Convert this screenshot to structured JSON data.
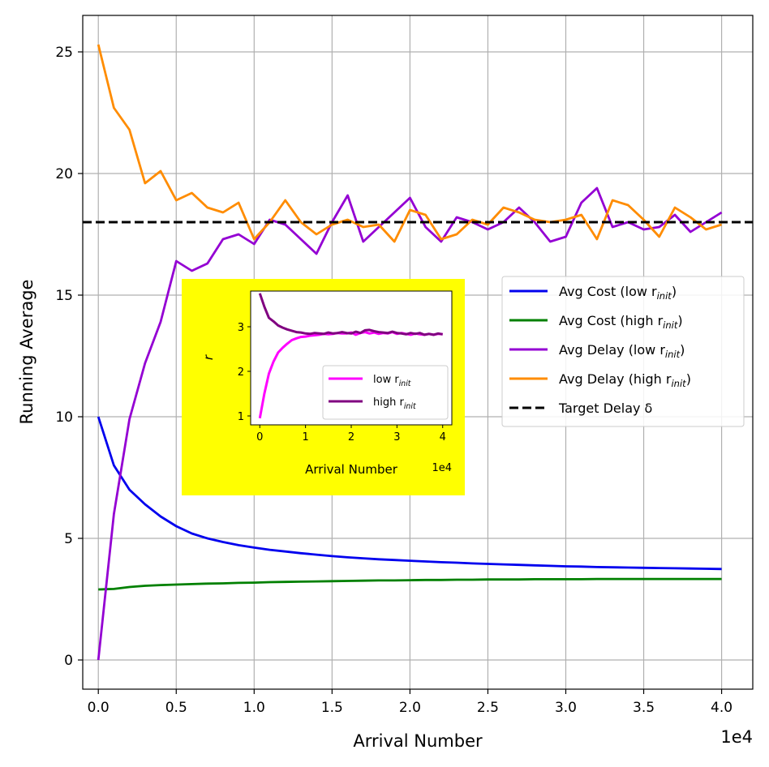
{
  "chart_data": {
    "type": "line",
    "xlabel": "Arrival Number",
    "ylabel": "Running Average",
    "x_offset_label": "1e4",
    "xlim": [
      -0.1,
      4.2
    ],
    "ylim": [
      -1.2,
      26.5
    ],
    "grid": true,
    "x": [
      0.0,
      0.1,
      0.2,
      0.3,
      0.4,
      0.5,
      0.6,
      0.7,
      0.8,
      0.9,
      1.0,
      1.1,
      1.2,
      1.3,
      1.4,
      1.5,
      1.6,
      1.7,
      1.8,
      1.9,
      2.0,
      2.1,
      2.2,
      2.3,
      2.4,
      2.5,
      2.6,
      2.7,
      2.8,
      2.9,
      3.0,
      3.1,
      3.2,
      3.3,
      3.4,
      3.5,
      3.6,
      3.7,
      3.8,
      3.9,
      4.0
    ],
    "x_ticks": [
      {
        "v": 0.0,
        "label": "0.0"
      },
      {
        "v": 0.5,
        "label": "0.5"
      },
      {
        "v": 1.0,
        "label": "1.0"
      },
      {
        "v": 1.5,
        "label": "1.5"
      },
      {
        "v": 2.0,
        "label": "2.0"
      },
      {
        "v": 2.5,
        "label": "2.5"
      },
      {
        "v": 3.0,
        "label": "3.0"
      },
      {
        "v": 3.5,
        "label": "3.5"
      },
      {
        "v": 4.0,
        "label": "4.0"
      }
    ],
    "y_ticks": [
      {
        "v": 0,
        "label": "0"
      },
      {
        "v": 5,
        "label": "5"
      },
      {
        "v": 10,
        "label": "10"
      },
      {
        "v": 15,
        "label": "15"
      },
      {
        "v": 20,
        "label": "20"
      },
      {
        "v": 25,
        "label": "25"
      }
    ],
    "series": [
      {
        "name": "Avg Cost (low r",
        "subscript": "init",
        "suffix": ")",
        "color": "#0000ee",
        "style": "solid",
        "values": [
          10.0,
          8.0,
          7.0,
          6.4,
          5.9,
          5.5,
          5.2,
          5.0,
          4.85,
          4.72,
          4.62,
          4.53,
          4.46,
          4.39,
          4.33,
          4.27,
          4.22,
          4.18,
          4.14,
          4.11,
          4.08,
          4.05,
          4.02,
          4.0,
          3.97,
          3.95,
          3.93,
          3.91,
          3.89,
          3.87,
          3.85,
          3.84,
          3.82,
          3.81,
          3.8,
          3.79,
          3.78,
          3.77,
          3.76,
          3.75,
          3.74
        ]
      },
      {
        "name": "Avg Cost (high r",
        "subscript": "init",
        "suffix": ")",
        "color": "#008000",
        "style": "solid",
        "values": [
          2.9,
          2.92,
          3.0,
          3.05,
          3.08,
          3.1,
          3.12,
          3.14,
          3.15,
          3.17,
          3.18,
          3.2,
          3.21,
          3.22,
          3.23,
          3.24,
          3.25,
          3.26,
          3.27,
          3.27,
          3.28,
          3.29,
          3.29,
          3.3,
          3.3,
          3.31,
          3.31,
          3.31,
          3.32,
          3.32,
          3.32,
          3.32,
          3.33,
          3.33,
          3.33,
          3.33,
          3.33,
          3.33,
          3.33,
          3.33,
          3.33
        ]
      },
      {
        "name": "Avg Delay (low r",
        "subscript": "init",
        "suffix": ")",
        "color": "#9400d3",
        "style": "solid",
        "values": [
          0.0,
          6.0,
          9.9,
          12.2,
          13.9,
          16.4,
          16.0,
          16.3,
          17.3,
          17.5,
          17.1,
          18.1,
          17.9,
          17.3,
          16.7,
          18.0,
          19.1,
          17.2,
          17.8,
          18.4,
          19.0,
          17.8,
          17.2,
          18.2,
          18.0,
          17.7,
          18.0,
          18.6,
          18.0,
          17.2,
          17.4,
          18.8,
          19.4,
          17.8,
          18.0,
          17.7,
          17.8,
          18.3,
          17.6,
          18.0,
          18.4
        ]
      },
      {
        "name": "Avg Delay (high r",
        "subscript": "init",
        "suffix": ")",
        "color": "#ff8c00",
        "style": "solid",
        "values": [
          25.3,
          22.7,
          21.8,
          19.6,
          20.1,
          18.9,
          19.2,
          18.6,
          18.4,
          18.8,
          17.3,
          18.0,
          18.9,
          18.0,
          17.5,
          17.9,
          18.1,
          17.8,
          17.9,
          17.2,
          18.5,
          18.3,
          17.3,
          17.5,
          18.1,
          17.9,
          18.6,
          18.4,
          18.1,
          18.0,
          18.1,
          18.3,
          17.3,
          18.9,
          18.7,
          18.1,
          17.4,
          18.6,
          18.2,
          17.7,
          17.9
        ]
      },
      {
        "name": "Target Delay δ",
        "color": "#000000",
        "style": "dashed",
        "constant": 18.0
      }
    ],
    "inset": {
      "background": "#ffff00",
      "xlabel": "Arrival Number",
      "ylabel": "r",
      "x_offset_label": "1e4",
      "xlim": [
        -0.2,
        4.2
      ],
      "ylim": [
        0.8,
        3.8
      ],
      "x_ticks": [
        {
          "v": 0,
          "label": "0"
        },
        {
          "v": 1,
          "label": "1"
        },
        {
          "v": 2,
          "label": "2"
        },
        {
          "v": 3,
          "label": "3"
        },
        {
          "v": 4,
          "label": "4"
        }
      ],
      "y_ticks": [
        {
          "v": 1,
          "label": "1"
        },
        {
          "v": 2,
          "label": "2"
        },
        {
          "v": 3,
          "label": "3"
        }
      ],
      "x": [
        0.0,
        0.1,
        0.2,
        0.3,
        0.4,
        0.5,
        0.6,
        0.7,
        0.8,
        0.9,
        1.0,
        1.1,
        1.2,
        1.3,
        1.4,
        1.5,
        1.6,
        1.7,
        1.8,
        1.9,
        2.0,
        2.1,
        2.2,
        2.3,
        2.4,
        2.5,
        2.6,
        2.7,
        2.8,
        2.9,
        3.0,
        3.1,
        3.2,
        3.3,
        3.4,
        3.5,
        3.6,
        3.7,
        3.8,
        3.9,
        4.0
      ],
      "series": [
        {
          "name": "low r",
          "subscript": "init",
          "color": "#ff00ff",
          "values": [
            0.95,
            1.5,
            1.95,
            2.22,
            2.42,
            2.53,
            2.62,
            2.7,
            2.74,
            2.77,
            2.78,
            2.8,
            2.81,
            2.82,
            2.84,
            2.83,
            2.84,
            2.86,
            2.85,
            2.85,
            2.87,
            2.82,
            2.86,
            2.88,
            2.85,
            2.87,
            2.84,
            2.86,
            2.85,
            2.88,
            2.84,
            2.86,
            2.84,
            2.82,
            2.85,
            2.83,
            2.82,
            2.84,
            2.82,
            2.84,
            2.83
          ]
        },
        {
          "name": "high r",
          "subscript": "init",
          "color": "#800080",
          "values": [
            3.75,
            3.45,
            3.2,
            3.12,
            3.03,
            2.98,
            2.94,
            2.91,
            2.88,
            2.87,
            2.85,
            2.84,
            2.86,
            2.85,
            2.84,
            2.87,
            2.85,
            2.86,
            2.88,
            2.86,
            2.85,
            2.89,
            2.86,
            2.92,
            2.93,
            2.9,
            2.88,
            2.87,
            2.86,
            2.89,
            2.86,
            2.85,
            2.83,
            2.86,
            2.84,
            2.86,
            2.82,
            2.84,
            2.82,
            2.85,
            2.83
          ]
        }
      ]
    }
  }
}
